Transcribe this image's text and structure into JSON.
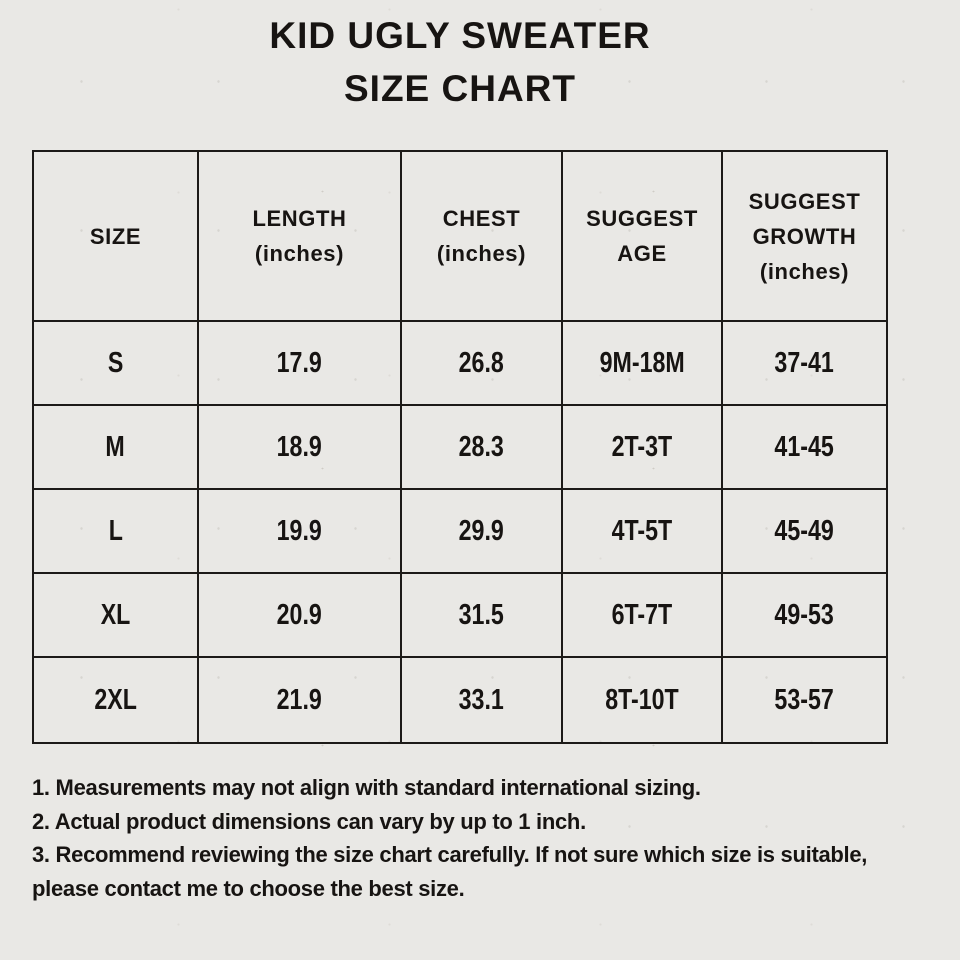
{
  "colors": {
    "background": "#e9e8e5",
    "ink": "#171412",
    "table_border": "#1c1a18"
  },
  "title": {
    "line1": "KID UGLY SWEATER",
    "line2": "SIZE CHART"
  },
  "table": {
    "columns": [
      "SIZE",
      "LENGTH\n(inches)",
      "CHEST\n(inches)",
      "SUGGEST\nAGE",
      "SUGGEST\nGROWTH\n(inches)"
    ],
    "rows": [
      {
        "size": "S",
        "length": "17.9",
        "chest": "26.8",
        "age": "9M-18M",
        "growth": "37-41"
      },
      {
        "size": "M",
        "length": "18.9",
        "chest": "28.3",
        "age": "2T-3T",
        "growth": "41-45"
      },
      {
        "size": "L",
        "length": "19.9",
        "chest": "29.9",
        "age": "4T-5T",
        "growth": "45-49"
      },
      {
        "size": "XL",
        "length": "20.9",
        "chest": "31.5",
        "age": "6T-7T",
        "growth": "49-53"
      },
      {
        "size": "2XL",
        "length": "21.9",
        "chest": "33.1",
        "age": "8T-10T",
        "growth": "53-57"
      }
    ]
  },
  "notes": {
    "note1": "1. Measurements may not align with standard international sizing.",
    "note2": "2. Actual product dimensions can vary by up to 1 inch.",
    "note3": "3. Recommend reviewing the size chart carefully. If not sure which size is suitable, please contact me to choose the best size."
  }
}
